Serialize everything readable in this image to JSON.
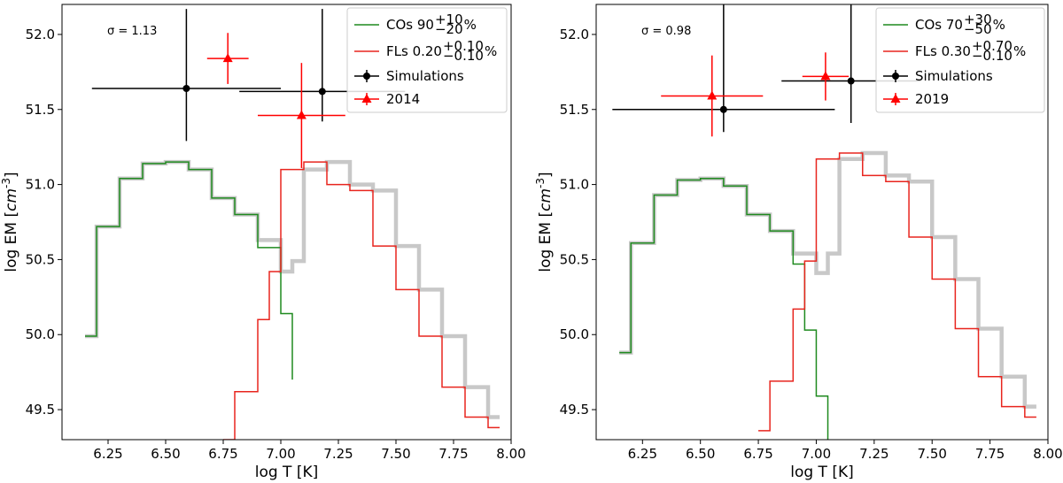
{
  "chart_data": [
    {
      "type": "line",
      "xlabel": "log T [K]",
      "ylabel": "log EM [cm^-3]",
      "xlim": [
        6.05,
        8.0
      ],
      "ylim": [
        49.3,
        52.2
      ],
      "xticks": [
        "6.25",
        "6.50",
        "6.75",
        "7.00",
        "7.25",
        "7.50",
        "7.75",
        "8.00"
      ],
      "yticks": [
        "49.5",
        "50.0",
        "50.5",
        "51.0",
        "51.5",
        "52.0"
      ],
      "annotation": "σ = 1.13",
      "legend_position": "top-right",
      "legend": {
        "cos_label": "COs 90",
        "cos_sup": "+10",
        "cos_sub": "−20",
        "cos_unit": "%",
        "fls_label": "FLs 0.20",
        "fls_sup": "+0.10",
        "fls_sub": "−0.10",
        "fls_unit": "%",
        "sim_label": "Simulations",
        "obs_label": "2014"
      },
      "series": {
        "total": {
          "name": "total",
          "color": "#c8c8c8",
          "x": [
            6.15,
            6.2,
            6.25,
            6.3,
            6.35,
            6.4,
            6.45,
            6.5,
            6.55,
            6.6,
            6.65,
            6.7,
            6.75,
            6.8,
            6.85,
            6.9,
            6.95,
            7.0,
            7.05,
            7.1,
            7.15,
            7.2,
            7.25,
            7.3,
            7.35,
            7.4,
            7.45,
            7.5,
            7.55,
            7.6,
            7.65,
            7.7,
            7.75,
            7.8,
            7.85,
            7.9,
            7.95
          ],
          "y": [
            49.99,
            50.72,
            50.72,
            51.04,
            51.04,
            51.14,
            51.14,
            51.15,
            51.15,
            51.1,
            51.1,
            50.91,
            50.91,
            50.8,
            50.8,
            50.63,
            50.63,
            50.42,
            50.49,
            51.1,
            51.1,
            51.15,
            51.15,
            51.0,
            51.0,
            50.96,
            50.96,
            50.59,
            50.59,
            50.3,
            50.3,
            49.99,
            49.99,
            49.65,
            49.65,
            49.45,
            49.45
          ]
        },
        "cos": {
          "name": "COs",
          "color": "#1f8a1f",
          "x": [
            6.15,
            6.2,
            6.25,
            6.3,
            6.35,
            6.4,
            6.45,
            6.5,
            6.55,
            6.6,
            6.65,
            6.7,
            6.75,
            6.8,
            6.85,
            6.9,
            6.95,
            7.0,
            7.05
          ],
          "y": [
            49.99,
            50.72,
            50.72,
            51.04,
            51.04,
            51.14,
            51.14,
            51.15,
            51.15,
            51.1,
            51.1,
            50.91,
            50.91,
            50.8,
            50.8,
            50.58,
            50.58,
            50.14,
            49.7
          ]
        },
        "fls": {
          "name": "FLs",
          "color": "#e8251e",
          "x": [
            6.75,
            6.8,
            6.85,
            6.9,
            6.95,
            7.0,
            7.05,
            7.1,
            7.15,
            7.2,
            7.25,
            7.3,
            7.35,
            7.4,
            7.45,
            7.5,
            7.55,
            7.6,
            7.65,
            7.7,
            7.75,
            7.8,
            7.85,
            7.9,
            7.95
          ],
          "y": [
            49.3,
            49.62,
            49.62,
            50.1,
            50.42,
            51.1,
            51.1,
            51.15,
            51.15,
            51.0,
            51.0,
            50.96,
            50.96,
            50.59,
            50.59,
            50.3,
            50.3,
            49.99,
            49.99,
            49.65,
            49.65,
            49.45,
            49.45,
            49.38,
            49.38
          ]
        }
      },
      "simulations": [
        {
          "x": 6.59,
          "y": 51.64,
          "xerr": [
            0.41,
            0.41
          ],
          "yerr": [
            0.35,
            0.53
          ]
        },
        {
          "x": 7.18,
          "y": 51.62,
          "xerr": [
            0.36,
            0.36
          ],
          "yerr": [
            0.2,
            0.55
          ]
        }
      ],
      "observations": [
        {
          "x": 6.77,
          "y": 51.84,
          "xerr": [
            0.09,
            0.09
          ],
          "yerr": [
            0.17,
            0.17
          ]
        },
        {
          "x": 7.09,
          "y": 51.46,
          "xerr": [
            0.19,
            0.19
          ],
          "yerr": [
            0.35,
            0.35
          ]
        }
      ]
    },
    {
      "type": "line",
      "xlabel": "log T [K]",
      "ylabel": "log EM [cm^-3]",
      "xlim": [
        6.05,
        8.0
      ],
      "ylim": [
        49.3,
        52.2
      ],
      "xticks": [
        "6.25",
        "6.50",
        "6.75",
        "7.00",
        "7.25",
        "7.50",
        "7.75",
        "8.00"
      ],
      "yticks": [
        "49.5",
        "50.0",
        "50.5",
        "51.0",
        "51.5",
        "52.0"
      ],
      "annotation": "σ = 0.98",
      "legend_position": "top-right",
      "legend": {
        "cos_label": "COs 70",
        "cos_sup": "+30",
        "cos_sub": "−50",
        "cos_unit": "%",
        "fls_label": "FLs 0.30",
        "fls_sup": "+0.70",
        "fls_sub": "−0.10",
        "fls_unit": "%",
        "sim_label": "Simulations",
        "obs_label": "2019"
      },
      "series": {
        "total": {
          "name": "total",
          "color": "#c8c8c8",
          "x": [
            6.15,
            6.2,
            6.25,
            6.3,
            6.35,
            6.4,
            6.45,
            6.5,
            6.55,
            6.6,
            6.65,
            6.7,
            6.75,
            6.8,
            6.85,
            6.9,
            6.95,
            7.0,
            7.05,
            7.1,
            7.15,
            7.2,
            7.25,
            7.3,
            7.35,
            7.4,
            7.45,
            7.5,
            7.55,
            7.6,
            7.65,
            7.7,
            7.75,
            7.8,
            7.85,
            7.9,
            7.95
          ],
          "y": [
            49.88,
            50.61,
            50.61,
            50.93,
            50.93,
            51.03,
            51.03,
            51.04,
            51.04,
            50.99,
            50.99,
            50.8,
            50.8,
            50.69,
            50.69,
            50.54,
            50.54,
            50.41,
            50.54,
            51.17,
            51.17,
            51.21,
            51.21,
            51.06,
            51.06,
            51.02,
            51.02,
            50.65,
            50.65,
            50.37,
            50.37,
            50.04,
            50.04,
            49.72,
            49.72,
            49.52,
            49.52
          ]
        },
        "cos": {
          "name": "COs",
          "color": "#1f8a1f",
          "x": [
            6.15,
            6.2,
            6.25,
            6.3,
            6.35,
            6.4,
            6.45,
            6.5,
            6.55,
            6.6,
            6.65,
            6.7,
            6.75,
            6.8,
            6.85,
            6.9,
            6.95,
            7.0,
            7.05
          ],
          "y": [
            49.88,
            50.61,
            50.61,
            50.93,
            50.93,
            51.03,
            51.03,
            51.04,
            51.04,
            50.99,
            50.99,
            50.8,
            50.8,
            50.69,
            50.69,
            50.47,
            50.03,
            49.59,
            49.3
          ]
        },
        "fls": {
          "name": "FLs",
          "color": "#e8251e",
          "x": [
            6.75,
            6.8,
            6.85,
            6.9,
            6.95,
            7.0,
            7.05,
            7.1,
            7.15,
            7.2,
            7.25,
            7.3,
            7.35,
            7.4,
            7.45,
            7.5,
            7.55,
            7.6,
            7.65,
            7.7,
            7.75,
            7.8,
            7.85,
            7.9,
            7.95
          ],
          "y": [
            49.36,
            49.69,
            49.69,
            50.17,
            50.49,
            51.17,
            51.17,
            51.21,
            51.21,
            51.06,
            51.06,
            51.02,
            51.02,
            50.65,
            50.65,
            50.37,
            50.37,
            50.04,
            50.04,
            49.72,
            49.72,
            49.52,
            49.52,
            49.45,
            49.45
          ]
        }
      },
      "simulations": [
        {
          "x": 6.6,
          "y": 51.5,
          "xerr": [
            0.48,
            0.48
          ],
          "yerr": [
            0.15,
            0.7
          ]
        },
        {
          "x": 7.15,
          "y": 51.69,
          "xerr": [
            0.3,
            0.3
          ],
          "yerr": [
            0.28,
            0.51
          ]
        }
      ],
      "observations": [
        {
          "x": 6.55,
          "y": 51.59,
          "xerr": [
            0.22,
            0.22
          ],
          "yerr": [
            0.27,
            0.27
          ]
        },
        {
          "x": 7.04,
          "y": 51.72,
          "xerr": [
            0.1,
            0.1
          ],
          "yerr": [
            0.16,
            0.16
          ]
        }
      ]
    }
  ]
}
